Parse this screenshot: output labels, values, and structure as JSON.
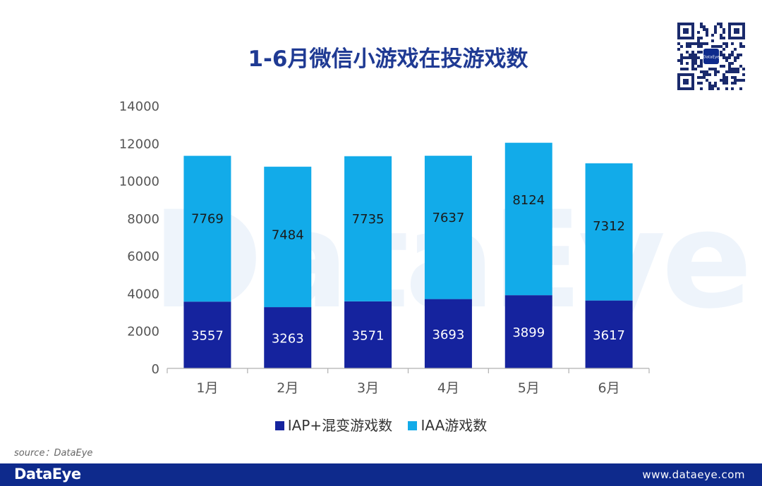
{
  "page": {
    "watermark": "DataEye",
    "source": "source：DataEye",
    "footer": {
      "brand": "DataEye",
      "website": "www.dataeye.com"
    },
    "qr_logo": "DataEye",
    "colors": {
      "iap": "#15239e",
      "iaa": "#12abe9",
      "footer": "#0e2a8c",
      "title": "#1f3a93"
    }
  },
  "chart_data": {
    "type": "bar",
    "stacked": true,
    "title": "1-6月微信小游戏在投游戏数",
    "categories": [
      "1月",
      "2月",
      "3月",
      "4月",
      "5月",
      "6月"
    ],
    "series": [
      {
        "name": "IAP+混变游戏数",
        "values": [
          3557,
          3263,
          3571,
          3693,
          3899,
          3617
        ],
        "color": "#15239e"
      },
      {
        "name": "IAA游戏数",
        "values": [
          7769,
          7484,
          7735,
          7637,
          8124,
          7312
        ],
        "color": "#12abe9"
      }
    ],
    "ylim": [
      0,
      14000
    ],
    "yticks": [
      0,
      2000,
      4000,
      6000,
      8000,
      10000,
      12000,
      14000
    ],
    "grid": false,
    "legend": "bottom"
  }
}
